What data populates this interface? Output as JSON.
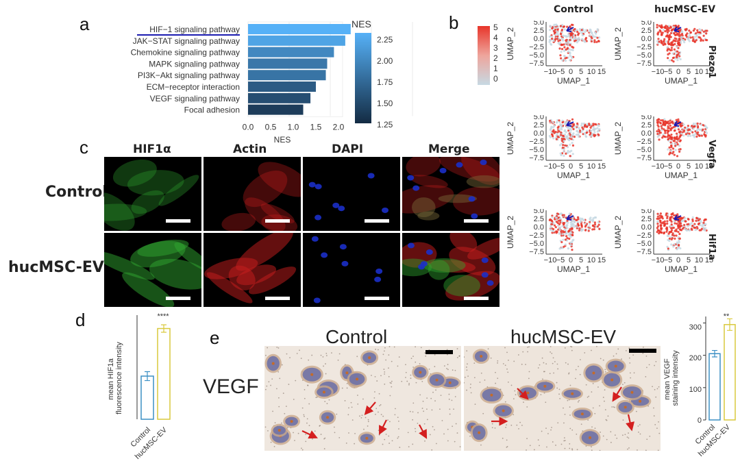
{
  "panel_labels": {
    "a": "a",
    "b": "b",
    "c": "c",
    "d": "d",
    "e": "e"
  },
  "colors": {
    "bar_dark": "#1c3a57",
    "bar_light": "#56b1f7",
    "hif_green": "#2fa52f",
    "actin_red": "#c81e1e",
    "dapi_blue": "#1b2fc8",
    "umap_high": "#e8352a",
    "umap_low": "#c7d9e3",
    "arrow_blue": "#1a1ab0",
    "arrow_red": "#d41f1f",
    "ctrl_bar": "#3b8fc4",
    "ev_bar": "#d9c93c"
  },
  "panel_a": {
    "legend_title": "NES",
    "legend_ticks": [
      "2.25",
      "2.00",
      "1.75",
      "1.50",
      "1.25"
    ],
    "xlabel": "NES",
    "x_ticks": [
      "0.0",
      "0.5",
      "1.0",
      "1.5",
      "2.0"
    ]
  },
  "panel_b": {
    "columns": [
      "Control",
      "hucMSC-EV"
    ],
    "genes": [
      "Piezo1",
      "Vegfa",
      "Hif1a"
    ],
    "xlabel": "UMAP_1",
    "ylabel": "UMAP_2",
    "x_ticks": [
      "−10",
      "−5",
      "0",
      "5",
      "10",
      "15"
    ],
    "y_ticks": [
      "5.0",
      "2.5",
      "0.0",
      "−2.5",
      "−5.0",
      "−7.5"
    ],
    "legend_ticks": [
      "5",
      "4",
      "3",
      "2",
      "1",
      "0"
    ]
  },
  "panel_c": {
    "columns": [
      "HIF1α",
      "Actin",
      "DAPI",
      "Merge"
    ],
    "rows": [
      "Control",
      "hucMSC-EV"
    ]
  },
  "panel_d": {
    "ylabel_line1": "mean HIF1a",
    "ylabel_line2": "fluorescence intensity",
    "significance": "****",
    "categories": [
      "Control",
      "hucMSC-EV"
    ]
  },
  "panel_e": {
    "stain_label": "VEGF",
    "image_titles": [
      "Control",
      "hucMSC-EV"
    ],
    "ylabel_line1": "mean VEGF",
    "ylabel_line2": "staining intensity",
    "significance": "**",
    "y_ticks": [
      "0",
      "100",
      "200",
      "300"
    ],
    "categories": [
      "Control",
      "hucMSC-EV"
    ]
  },
  "chart_data": [
    {
      "type": "bar",
      "orientation": "horizontal",
      "categories": [
        "HIF−1 signaling pathway",
        "JAK−STAT signaling pathway",
        "Chemokine signaling pathway",
        "MAPK signaling pathway",
        "PI3K−Akt signaling pathway",
        "ECM−receptor interaction",
        "VEGF signaling pathway",
        "Focal adhesion"
      ],
      "values": [
        2.27,
        2.15,
        1.9,
        1.75,
        1.72,
        1.5,
        1.38,
        1.22
      ],
      "xlabel": "NES",
      "xlim": [
        0,
        2.35
      ],
      "color_scale": "NES",
      "legend_range": [
        1.2,
        2.27
      ]
    },
    {
      "type": "bar",
      "categories": [
        "Control",
        "hucMSC-EV"
      ],
      "values": [
        5.8,
        12.2
      ],
      "errors": [
        0.6,
        0.5
      ],
      "ylim": [
        0,
        14
      ],
      "significance": "****",
      "ylabel": "mean HIF1a fluorescence intensity"
    },
    {
      "type": "bar",
      "categories": [
        "Control",
        "hucMSC-EV"
      ],
      "values": [
        205,
        295
      ],
      "errors": [
        10,
        18
      ],
      "ylim": [
        0,
        320
      ],
      "significance": "**",
      "ylabel": "mean VEGF staining intensity"
    }
  ]
}
